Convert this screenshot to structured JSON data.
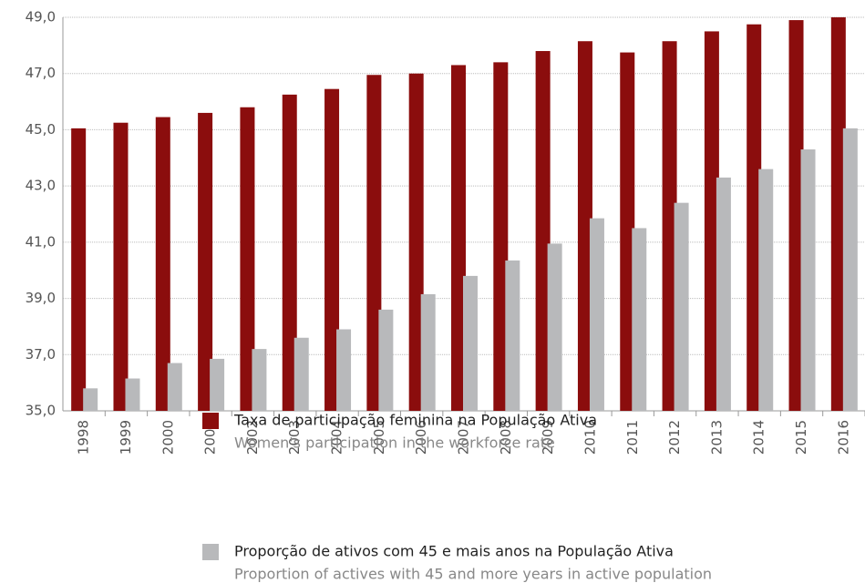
{
  "chart_data": {
    "type": "bar",
    "categories": [
      "1998",
      "1999",
      "2000",
      "2001",
      "2002",
      "2003",
      "2004",
      "2005",
      "2006",
      "2007",
      "2008",
      "2009",
      "2010",
      "2011",
      "2012",
      "2013",
      "2014",
      "2015",
      "2016"
    ],
    "series": [
      {
        "name": "Taxa de participação feminina na População Ativa",
        "name_en": "Women's participation in the workforce rate",
        "color": "#8b0d0d",
        "values": [
          45.05,
          45.25,
          45.45,
          45.6,
          45.8,
          46.25,
          46.45,
          46.95,
          47.0,
          47.3,
          47.4,
          47.8,
          48.15,
          47.75,
          48.15,
          48.5,
          48.75,
          48.9,
          49.0
        ]
      },
      {
        "name": "Proporção de ativos com 45 e mais anos na População Ativa",
        "name_en": "Proportion of actives with 45 and more years in active population",
        "color": "#b8b9bb",
        "values": [
          35.8,
          36.15,
          36.7,
          36.85,
          37.2,
          37.6,
          37.9,
          38.6,
          39.15,
          39.8,
          40.35,
          40.95,
          41.85,
          41.5,
          42.4,
          43.3,
          43.6,
          44.3,
          45.05
        ]
      }
    ],
    "ylim": [
      35,
      49
    ],
    "yticks": [
      {
        "value": 35,
        "label": "35,0"
      },
      {
        "value": 37,
        "label": "37,0"
      },
      {
        "value": 39,
        "label": "39,0"
      },
      {
        "value": 41,
        "label": "41,0"
      },
      {
        "value": 43,
        "label": "43,0"
      },
      {
        "value": 45,
        "label": "45,0"
      },
      {
        "value": 47,
        "label": "47,0"
      },
      {
        "value": 49,
        "label": "49,0"
      }
    ],
    "grid": true
  }
}
